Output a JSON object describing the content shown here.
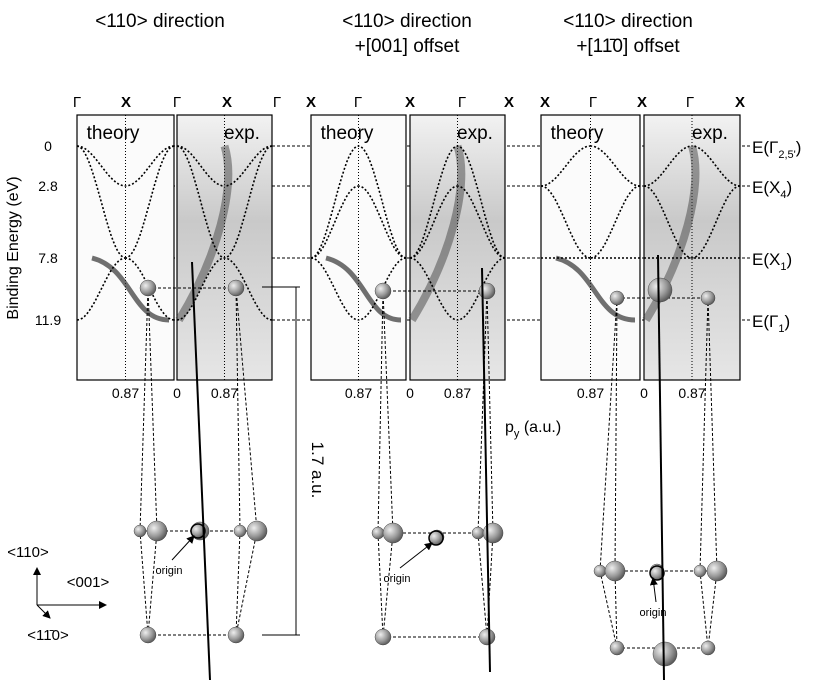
{
  "panels": [
    {
      "title": [
        "<110> direction"
      ],
      "symbols": [
        "Γ",
        "X",
        "Γ",
        "X",
        "Γ"
      ],
      "theory": "theory",
      "exp": "exp.",
      "ticks": [
        "0.87",
        "0",
        "0.87"
      ]
    },
    {
      "title": [
        "<110> direction",
        "+[001] offset"
      ],
      "symbols": [
        "X",
        "Γ",
        "X",
        "Γ",
        "X"
      ],
      "theory": "theory",
      "exp": "exp.",
      "ticks": [
        "0.87",
        "0",
        "0.87"
      ]
    },
    {
      "title": [
        "<110> direction",
        "+[11̄0] offset"
      ],
      "symbols": [
        "X",
        "Γ",
        "X",
        "Γ",
        "X"
      ],
      "theory": "theory",
      "exp": "exp.",
      "ticks": [
        "0.87",
        "0",
        "0.87"
      ]
    }
  ],
  "y_axis": {
    "label": "Binding Energy (eV)",
    "ticks": [
      "0",
      "2.8",
      "7.8",
      "11.9"
    ]
  },
  "levels": [
    {
      "main": "E(Γ",
      "sub": "2,5'",
      "end": ")"
    },
    {
      "main": "E(X",
      "sub": "4",
      "end": ")"
    },
    {
      "main": "E(X",
      "sub": "1",
      "end": ")"
    },
    {
      "main": "E(Γ",
      "sub": "1",
      "end": ")"
    }
  ],
  "x_axis": {
    "main": "p",
    "sub": "y",
    "end": " (a.u.)"
  },
  "crystal": {
    "axes": [
      "<110>",
      "<001>",
      "<11̄0>"
    ],
    "dimension": "1.7 a.u.",
    "origin": [
      "origin",
      "origin",
      "origin"
    ]
  }
}
